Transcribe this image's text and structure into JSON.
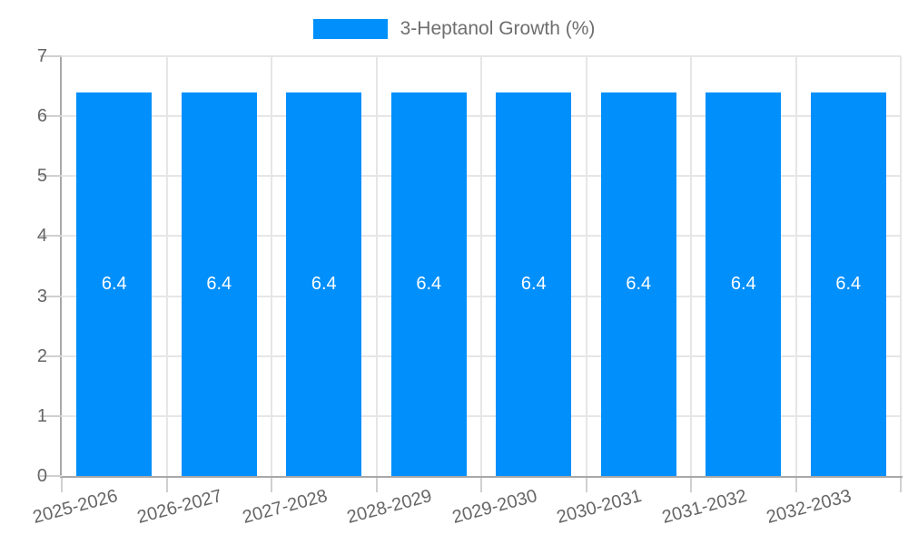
{
  "legend": {
    "items": [
      {
        "label": "3-Heptanol Growth (%)",
        "marker_color": "#008FFB"
      }
    ]
  },
  "chart_data": {
    "type": "bar",
    "title": "3-Heptanol Growth (%)",
    "categories": [
      "2025-2026",
      "2026-2027",
      "2027-2028",
      "2028-2029",
      "2029-2030",
      "2030-2031",
      "2031-2032",
      "2032-2033"
    ],
    "series": [
      {
        "name": "3-Heptanol Growth (%)",
        "values": [
          6.4,
          6.4,
          6.4,
          6.4,
          6.4,
          6.4,
          6.4,
          6.4
        ]
      }
    ],
    "bar_value_labels": [
      "6.4",
      "6.4",
      "6.4",
      "6.4",
      "6.4",
      "6.4",
      "6.4",
      "6.4"
    ],
    "xlabel": "",
    "ylabel": "",
    "ylim": [
      0,
      7
    ],
    "yticks": [
      0,
      1,
      2,
      3,
      4,
      5,
      6,
      7
    ],
    "grid": true,
    "legend_position": "top",
    "x_label_rotation_deg": -15,
    "colors": {
      "bar": "#008FFB",
      "grid": "#e6e6e6",
      "axis": "#a8a8a8",
      "tick": "#d0d0d0",
      "axis_label": "#666666",
      "legend_label": "#6e6e6e",
      "value_label": "#ffffff"
    }
  }
}
